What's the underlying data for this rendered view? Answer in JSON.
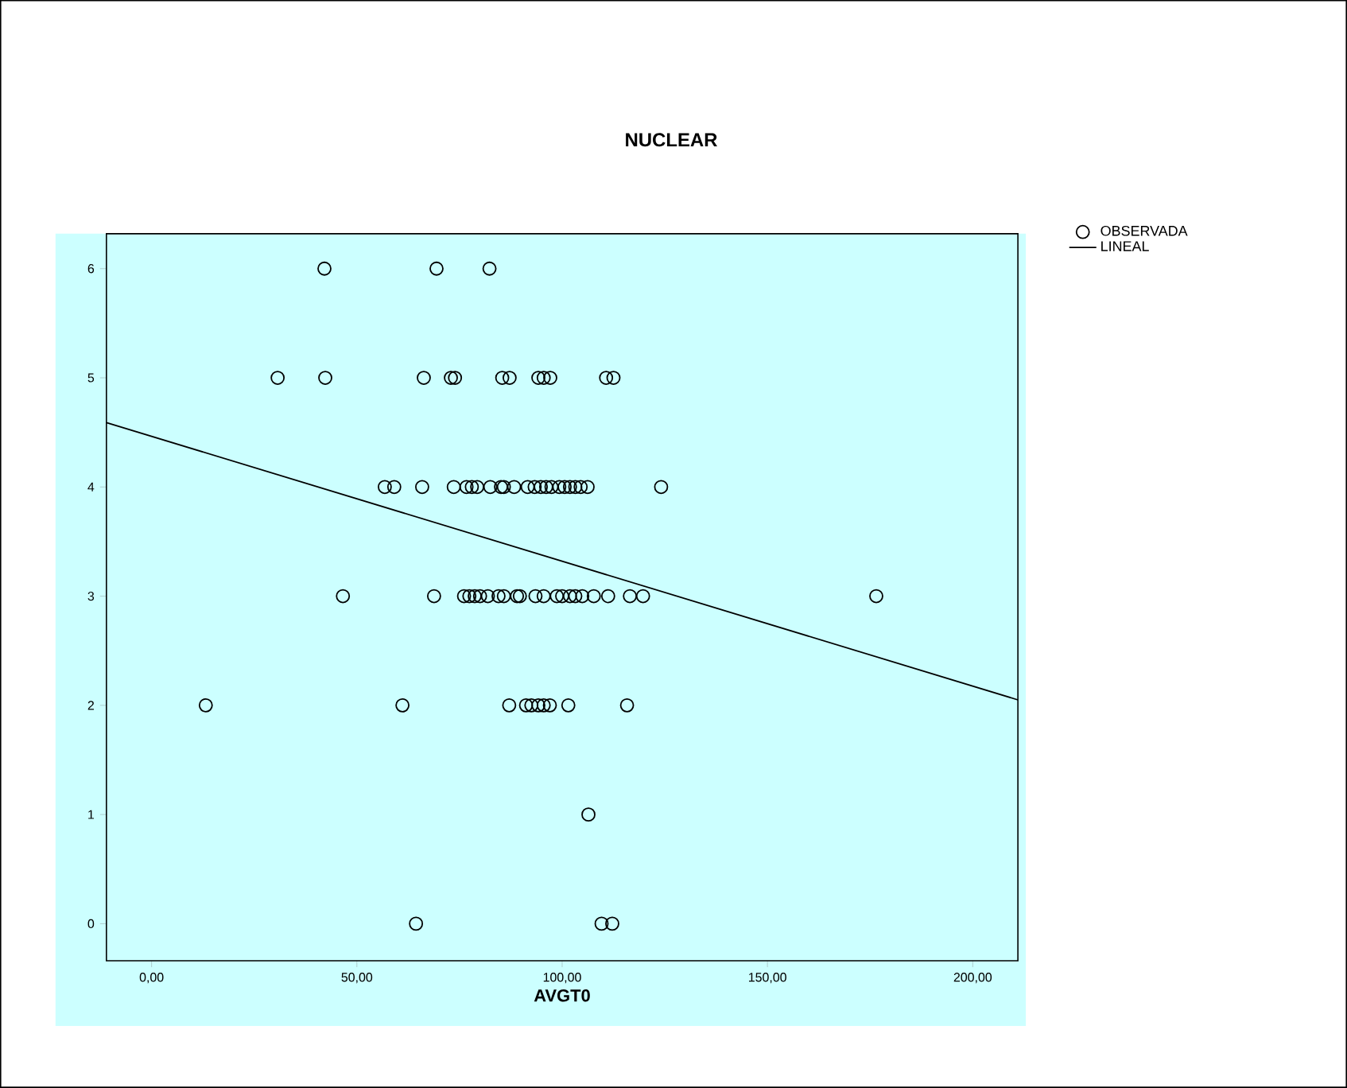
{
  "chart_data": {
    "type": "scatter",
    "title": "NUCLEAR",
    "xlabel": "AVGT0",
    "xlim": [
      -11,
      211
    ],
    "ylim": [
      -0.34,
      6.32
    ],
    "xticks": [
      {
        "value": 0,
        "label": "0,00"
      },
      {
        "value": 50,
        "label": "50,00"
      },
      {
        "value": 100,
        "label": "100,00"
      },
      {
        "value": 150,
        "label": "150,00"
      },
      {
        "value": 200,
        "label": "200,00"
      }
    ],
    "yticks": [
      0,
      1,
      2,
      3,
      4,
      5,
      6
    ],
    "legend": "top right",
    "series": [
      {
        "name": "OBSERVADA",
        "color": "#000000",
        "marker": "circle",
        "x": [
          42.1,
          69.4,
          82.3,
          30.7,
          42.3,
          66.3,
          72.9,
          73.9,
          85.4,
          87.2,
          94.2,
          95.5,
          97.1,
          110.7,
          112.5,
          56.8,
          59.1,
          65.9,
          73.6,
          76.7,
          78.0,
          79.3,
          82.5,
          85.1,
          85.8,
          88.3,
          91.6,
          93.3,
          94.8,
          96.1,
          97.4,
          99.3,
          100.6,
          101.9,
          103.2,
          104.5,
          106.2,
          124.1,
          46.6,
          68.8,
          76.1,
          77.4,
          78.7,
          80.0,
          81.9,
          84.5,
          85.8,
          89.0,
          89.7,
          93.5,
          95.5,
          98.7,
          100.0,
          101.9,
          103.2,
          104.9,
          107.7,
          111.2,
          116.5,
          119.7,
          176.5,
          13.2,
          61.1,
          87.1,
          91.2,
          92.5,
          94.2,
          95.5,
          97.0,
          101.5,
          115.8,
          106.4,
          64.4,
          109.6,
          112.2
        ],
        "values": [
          6,
          6,
          6,
          5,
          5,
          5,
          5,
          5,
          5,
          5,
          5,
          5,
          5,
          5,
          5,
          4,
          4,
          4,
          4,
          4,
          4,
          4,
          4,
          4,
          4,
          4,
          4,
          4,
          4,
          4,
          4,
          4,
          4,
          4,
          4,
          4,
          4,
          4,
          3,
          3,
          3,
          3,
          3,
          3,
          3,
          3,
          3,
          3,
          3,
          3,
          3,
          3,
          3,
          3,
          3,
          3,
          3,
          3,
          3,
          3,
          3,
          2,
          2,
          2,
          2,
          2,
          2,
          2,
          2,
          2,
          2,
          1,
          0,
          0,
          0
        ]
      },
      {
        "name": "LINEAL",
        "type": "line",
        "color": "#000000",
        "x": [
          -11,
          211
        ],
        "values": [
          4.59,
          2.05
        ]
      }
    ]
  }
}
